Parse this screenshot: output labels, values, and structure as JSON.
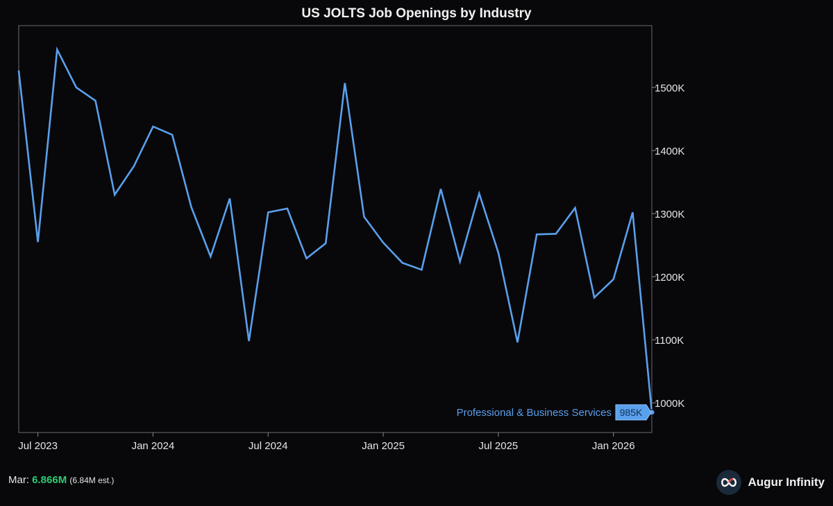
{
  "chart_data": {
    "type": "line",
    "title": "US JOLTS Job Openings by Industry",
    "xlabel": "",
    "ylabel": "",
    "x": [
      "2023-06",
      "2023-07",
      "2023-08",
      "2023-09",
      "2023-10",
      "2023-11",
      "2023-12",
      "2024-01",
      "2024-02",
      "2024-03",
      "2024-04",
      "2024-05",
      "2024-06",
      "2024-07",
      "2024-08",
      "2024-09",
      "2024-10",
      "2024-11",
      "2024-12",
      "2025-01",
      "2025-02",
      "2025-03",
      "2025-04",
      "2025-05",
      "2025-06",
      "2025-07",
      "2025-08",
      "2025-09",
      "2025-10",
      "2025-11",
      "2025-12",
      "2026-01",
      "2026-02",
      "2026-03"
    ],
    "series": [
      {
        "name": "Professional & Business Services",
        "color": "#5aa0ec",
        "values": [
          1526,
          1255,
          1560,
          1500,
          1479,
          1330,
          1375,
          1438,
          1425,
          1310,
          1232,
          1324,
          1098,
          1302,
          1308,
          1229,
          1253,
          1507,
          1295,
          1254,
          1222,
          1211,
          1339,
          1224,
          1332,
          1238,
          1096,
          1267,
          1268,
          1309,
          1167,
          1196,
          1302,
          985
        ]
      }
    ],
    "last_value_label": "985K",
    "x_ticks": [
      {
        "x": "2023-07",
        "label": "Jul 2023"
      },
      {
        "x": "2024-01",
        "label": "Jan 2024"
      },
      {
        "x": "2024-07",
        "label": "Jul 2024"
      },
      {
        "x": "2025-01",
        "label": "Jan 2025"
      },
      {
        "x": "2025-07",
        "label": "Jul 2025"
      },
      {
        "x": "2026-01",
        "label": "Jan 2026"
      }
    ],
    "y_ticks": [
      {
        "value": 1000,
        "label": "1000K"
      },
      {
        "value": 1100,
        "label": "1100K"
      },
      {
        "value": 1200,
        "label": "1200K"
      },
      {
        "value": 1300,
        "label": "1300K"
      },
      {
        "value": 1400,
        "label": "1400K"
      },
      {
        "value": 1500,
        "label": "1500K"
      }
    ],
    "ylim": [
      953,
      1598
    ],
    "xlim": [
      "2023-06",
      "2026-03"
    ],
    "yaxis_side": "right",
    "grid": false,
    "background": "#08080b",
    "line_color": "#5aa0ec"
  },
  "footer": {
    "prefix": "Mar: ",
    "value": "6.866M",
    "estimate": "(6.84M est.)"
  },
  "brand": {
    "name": "Augur Infinity",
    "logo_icon": "infinity-icon"
  }
}
